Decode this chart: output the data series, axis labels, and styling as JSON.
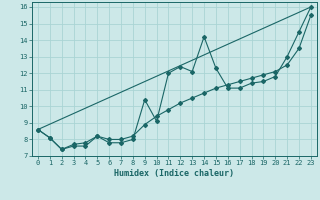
{
  "xlabel": "Humidex (Indice chaleur)",
  "bg_color": "#cce8e8",
  "grid_color": "#aad4d4",
  "line_color": "#1a6666",
  "xlim": [
    -0.5,
    23.5
  ],
  "ylim": [
    7,
    16.3
  ],
  "xticks": [
    0,
    1,
    2,
    3,
    4,
    5,
    6,
    7,
    8,
    9,
    10,
    11,
    12,
    13,
    14,
    15,
    16,
    17,
    18,
    19,
    20,
    21,
    22,
    23
  ],
  "yticks": [
    7,
    8,
    9,
    10,
    11,
    12,
    13,
    14,
    15,
    16
  ],
  "line1_x": [
    0,
    1,
    2,
    3,
    4,
    5,
    6,
    7,
    8,
    9,
    10,
    11,
    12,
    13,
    14,
    15,
    16,
    17,
    18,
    19,
    20,
    21,
    22,
    23
  ],
  "line1_y": [
    8.6,
    8.1,
    7.4,
    7.6,
    7.6,
    8.2,
    7.8,
    7.8,
    8.0,
    10.4,
    9.1,
    12.0,
    12.4,
    12.1,
    14.2,
    12.3,
    11.1,
    11.1,
    11.4,
    11.5,
    11.8,
    13.0,
    14.5,
    16.0
  ],
  "line2_x": [
    0,
    1,
    2,
    3,
    4,
    5,
    6,
    7,
    8,
    9,
    10,
    11,
    12,
    13,
    14,
    15,
    16,
    17,
    18,
    19,
    20,
    21,
    22,
    23
  ],
  "line2_y": [
    8.6,
    8.1,
    7.4,
    7.7,
    7.8,
    8.2,
    8.0,
    8.0,
    8.2,
    8.9,
    9.4,
    9.8,
    10.2,
    10.5,
    10.8,
    11.1,
    11.3,
    11.5,
    11.7,
    11.9,
    12.1,
    12.5,
    13.5,
    15.5
  ],
  "line3_x": [
    0,
    23
  ],
  "line3_y": [
    8.6,
    16.0
  ]
}
